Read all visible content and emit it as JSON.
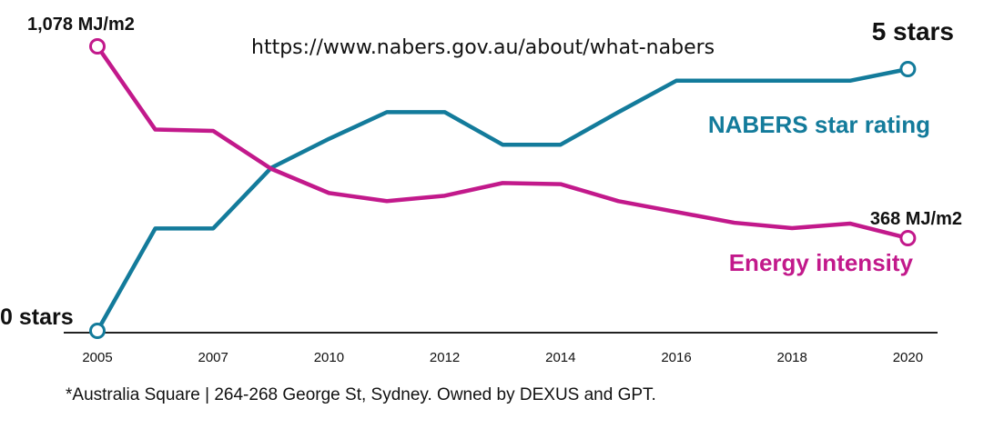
{
  "source_url": "https://www.nabers.gov.au/about/what-nabers",
  "footnote": "*Australia Square | 264-268 George St, Sydney. Owned by DEXUS and GPT.",
  "chart_data": {
    "type": "line",
    "title": "",
    "xlabel": "",
    "ylabel": "",
    "x_ticks": [
      "2005",
      "2007",
      "2010",
      "2012",
      "2014",
      "2016",
      "2018",
      "2020"
    ],
    "grid": false,
    "series": [
      {
        "name": "NABERS star rating",
        "color": "#137b9b",
        "start_label": "0 stars",
        "end_label": "5 stars",
        "values": [
          0,
          1.76,
          1.76,
          2.8,
          3.3,
          3.76,
          3.76,
          3.2,
          3.2,
          3.76,
          4.3,
          4.3,
          4.3,
          4.3,
          4.5
        ]
      },
      {
        "name": "Energy intensity",
        "color": "#c2198b",
        "start_label": "1,078 MJ/m2",
        "end_label": "368 MJ/m2",
        "values": [
          1078,
          770,
          765,
          625,
          535,
          505,
          525,
          572,
          568,
          505,
          465,
          425,
          405,
          422,
          368
        ]
      }
    ]
  }
}
